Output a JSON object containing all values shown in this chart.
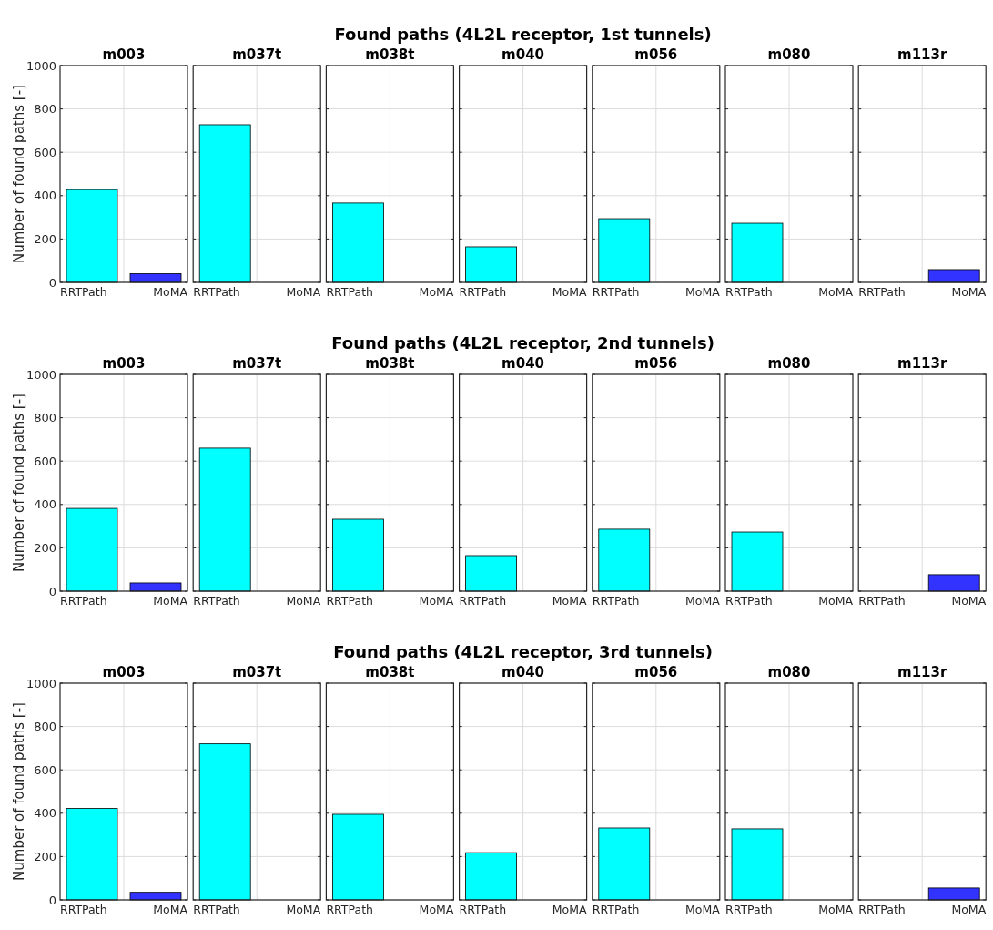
{
  "chart_data": [
    {
      "type": "bar",
      "title": "m003",
      "ylabel": "Number of found paths [-]",
      "annotations": [
        "Found paths (4L2L receptor, 1st tunnels)"
      ],
      "categories": [
        "RRTPath",
        "MoMA"
      ],
      "values": [
        428,
        40
      ],
      "colors": [
        "#00ffff",
        "#3333ff"
      ],
      "ylim": [
        0,
        1000
      ],
      "yticks": [
        0,
        200,
        400,
        600,
        800,
        1000
      ],
      "grid": true
    },
    {
      "type": "bar",
      "title": "m037t",
      "categories": [
        "RRTPath",
        "MoMA"
      ],
      "values": [
        727,
        0
      ],
      "colors": [
        "#00ffff",
        "#3333ff"
      ],
      "ylim": [
        0,
        1000
      ],
      "yticks": [
        0,
        200,
        400,
        600,
        800,
        1000
      ],
      "grid": true,
      "tick_labels": "x"
    },
    {
      "type": "bar",
      "title": "m038t",
      "categories": [
        "RRTPath",
        "MoMA"
      ],
      "values": [
        366,
        0
      ],
      "colors": [
        "#00ffff",
        "#3333ff"
      ],
      "ylim": [
        0,
        1000
      ],
      "yticks": [
        0,
        200,
        400,
        600,
        800,
        1000
      ],
      "grid": true,
      "tick_labels": "x"
    },
    {
      "type": "bar",
      "title": "m040",
      "categories": [
        "RRTPath",
        "MoMA"
      ],
      "values": [
        164,
        0
      ],
      "colors": [
        "#00ffff",
        "#3333ff"
      ],
      "ylim": [
        0,
        1000
      ],
      "yticks": [
        0,
        200,
        400,
        600,
        800,
        1000
      ],
      "grid": true,
      "tick_labels": "x"
    },
    {
      "type": "bar",
      "title": "m056",
      "categories": [
        "RRTPath",
        "MoMA"
      ],
      "values": [
        294,
        0
      ],
      "colors": [
        "#00ffff",
        "#3333ff"
      ],
      "ylim": [
        0,
        1000
      ],
      "yticks": [
        0,
        200,
        400,
        600,
        800,
        1000
      ],
      "grid": true,
      "tick_labels": "x"
    },
    {
      "type": "bar",
      "title": "m080",
      "categories": [
        "RRTPath",
        "MoMA"
      ],
      "values": [
        273,
        0
      ],
      "colors": [
        "#00ffff",
        "#3333ff"
      ],
      "ylim": [
        0,
        1000
      ],
      "yticks": [
        0,
        200,
        400,
        600,
        800,
        1000
      ],
      "grid": true,
      "tick_labels": "x"
    },
    {
      "type": "bar",
      "title": "m113r",
      "categories": [
        "RRTPath",
        "MoMA"
      ],
      "values": [
        0,
        59
      ],
      "colors": [
        "#00ffff",
        "#3333ff"
      ],
      "ylim": [
        0,
        1000
      ],
      "yticks": [
        0,
        200,
        400,
        600,
        800,
        1000
      ],
      "grid": true,
      "tick_labels": "x"
    },
    {
      "type": "bar",
      "title": "m003",
      "ylabel": "Number of found paths [-]",
      "annotations": [
        "Found paths (4L2L receptor, 2nd tunnels)"
      ],
      "categories": [
        "RRTPath",
        "MoMA"
      ],
      "values": [
        382,
        38
      ],
      "colors": [
        "#00ffff",
        "#3333ff"
      ],
      "ylim": [
        0,
        1000
      ],
      "yticks": [
        0,
        200,
        400,
        600,
        800,
        1000
      ],
      "grid": true
    },
    {
      "type": "bar",
      "title": "m037t",
      "categories": [
        "RRTPath",
        "MoMA"
      ],
      "values": [
        660,
        0
      ],
      "colors": [
        "#00ffff",
        "#3333ff"
      ],
      "ylim": [
        0,
        1000
      ],
      "yticks": [
        0,
        200,
        400,
        600,
        800,
        1000
      ],
      "grid": true,
      "tick_labels": "x"
    },
    {
      "type": "bar",
      "title": "m038t",
      "categories": [
        "RRTPath",
        "MoMA"
      ],
      "values": [
        332,
        0
      ],
      "colors": [
        "#00ffff",
        "#3333ff"
      ],
      "ylim": [
        0,
        1000
      ],
      "yticks": [
        0,
        200,
        400,
        600,
        800,
        1000
      ],
      "grid": true,
      "tick_labels": "x"
    },
    {
      "type": "bar",
      "title": "m040",
      "categories": [
        "RRTPath",
        "MoMA"
      ],
      "values": [
        164,
        0
      ],
      "colors": [
        "#00ffff",
        "#3333ff"
      ],
      "ylim": [
        0,
        1000
      ],
      "yticks": [
        0,
        200,
        400,
        600,
        800,
        1000
      ],
      "grid": true,
      "tick_labels": "x"
    },
    {
      "type": "bar",
      "title": "m056",
      "categories": [
        "RRTPath",
        "MoMA"
      ],
      "values": [
        286,
        0
      ],
      "colors": [
        "#00ffff",
        "#3333ff"
      ],
      "ylim": [
        0,
        1000
      ],
      "yticks": [
        0,
        200,
        400,
        600,
        800,
        1000
      ],
      "grid": true,
      "tick_labels": "x"
    },
    {
      "type": "bar",
      "title": "m080",
      "categories": [
        "RRTPath",
        "MoMA"
      ],
      "values": [
        273,
        0
      ],
      "colors": [
        "#00ffff",
        "#3333ff"
      ],
      "ylim": [
        0,
        1000
      ],
      "yticks": [
        0,
        200,
        400,
        600,
        800,
        1000
      ],
      "grid": true,
      "tick_labels": "x"
    },
    {
      "type": "bar",
      "title": "m113r",
      "categories": [
        "RRTPath",
        "MoMA"
      ],
      "values": [
        0,
        76
      ],
      "colors": [
        "#00ffff",
        "#3333ff"
      ],
      "ylim": [
        0,
        1000
      ],
      "yticks": [
        0,
        200,
        400,
        600,
        800,
        1000
      ],
      "grid": true,
      "tick_labels": "x"
    },
    {
      "type": "bar",
      "title": "m003",
      "ylabel": "Number of found paths [-]",
      "annotations": [
        "Found paths (4L2L receptor, 3rd tunnels)"
      ],
      "categories": [
        "RRTPath",
        "MoMA"
      ],
      "values": [
        422,
        35
      ],
      "colors": [
        "#00ffff",
        "#3333ff"
      ],
      "ylim": [
        0,
        1000
      ],
      "yticks": [
        0,
        200,
        400,
        600,
        800,
        1000
      ],
      "grid": true
    },
    {
      "type": "bar",
      "title": "m037t",
      "categories": [
        "RRTPath",
        "MoMA"
      ],
      "values": [
        720,
        0
      ],
      "colors": [
        "#00ffff",
        "#3333ff"
      ],
      "ylim": [
        0,
        1000
      ],
      "yticks": [
        0,
        200,
        400,
        600,
        800,
        1000
      ],
      "grid": true,
      "tick_labels": "x"
    },
    {
      "type": "bar",
      "title": "m038t",
      "categories": [
        "RRTPath",
        "MoMA"
      ],
      "values": [
        395,
        0
      ],
      "colors": [
        "#00ffff",
        "#3333ff"
      ],
      "ylim": [
        0,
        1000
      ],
      "yticks": [
        0,
        200,
        400,
        600,
        800,
        1000
      ],
      "grid": true,
      "tick_labels": "x"
    },
    {
      "type": "bar",
      "title": "m040",
      "categories": [
        "RRTPath",
        "MoMA"
      ],
      "values": [
        218,
        0
      ],
      "colors": [
        "#00ffff",
        "#3333ff"
      ],
      "ylim": [
        0,
        1000
      ],
      "yticks": [
        0,
        200,
        400,
        600,
        800,
        1000
      ],
      "grid": true,
      "tick_labels": "x"
    },
    {
      "type": "bar",
      "title": "m056",
      "categories": [
        "RRTPath",
        "MoMA"
      ],
      "values": [
        332,
        0
      ],
      "colors": [
        "#00ffff",
        "#3333ff"
      ],
      "ylim": [
        0,
        1000
      ],
      "yticks": [
        0,
        200,
        400,
        600,
        800,
        1000
      ],
      "grid": true,
      "tick_labels": "x"
    },
    {
      "type": "bar",
      "title": "m080",
      "categories": [
        "RRTPath",
        "MoMA"
      ],
      "values": [
        328,
        0
      ],
      "colors": [
        "#00ffff",
        "#3333ff"
      ],
      "ylim": [
        0,
        1000
      ],
      "yticks": [
        0,
        200,
        400,
        600,
        800,
        1000
      ],
      "grid": true,
      "tick_labels": "x"
    },
    {
      "type": "bar",
      "title": "m113r",
      "categories": [
        "RRTPath",
        "MoMA"
      ],
      "values": [
        0,
        55
      ],
      "colors": [
        "#00ffff",
        "#3333ff"
      ],
      "ylim": [
        0,
        1000
      ],
      "yticks": [
        0,
        200,
        400,
        600,
        800,
        1000
      ],
      "grid": true,
      "tick_labels": "x"
    }
  ]
}
